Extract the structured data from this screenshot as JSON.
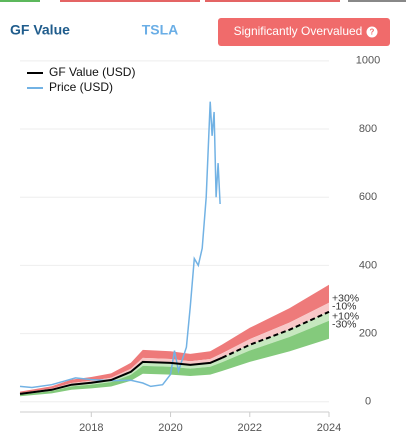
{
  "header": {
    "title": "GF Value",
    "ticker": "TSLA",
    "badge": "Significantly Overvalued",
    "badge_icon": "?"
  },
  "chart_data": {
    "type": "line",
    "xlim": [
      2016.2,
      2024
    ],
    "xticks": [
      2018,
      2020,
      2022,
      2024
    ],
    "ylim": [
      -30,
      1020
    ],
    "yticks": [
      0,
      200,
      400,
      600,
      800,
      1000
    ],
    "grid": true,
    "legend": "upper left",
    "series": [
      {
        "name": "GF Value (USD)",
        "color": "#000000",
        "x": [
          2016.2,
          2017,
          2017.5,
          2018,
          2018.5,
          2019,
          2019.3,
          2020,
          2020.5,
          2021,
          2021.3
        ],
        "values": [
          23,
          35,
          50,
          56,
          64,
          88,
          117,
          114,
          108,
          114,
          129
        ]
      },
      {
        "name": "Price (USD)",
        "color": "#72b2e4",
        "x": [
          2016.2,
          2016.5,
          2017,
          2017.3,
          2017.6,
          2018,
          2018.5,
          2019,
          2019.3,
          2019.5,
          2019.8,
          2020,
          2020.1,
          2020.2,
          2020.4,
          2020.5,
          2020.6,
          2020.7,
          2020.8,
          2020.9,
          2021,
          2021.05,
          2021.1,
          2021.15,
          2021.2,
          2021.25
        ],
        "values": [
          45,
          42,
          50,
          60,
          70,
          65,
          62,
          63,
          55,
          45,
          50,
          80,
          150,
          90,
          160,
          280,
          420,
          400,
          450,
          600,
          880,
          780,
          850,
          600,
          700,
          580
        ]
      }
    ],
    "projection": {
      "color": "#000000",
      "x": [
        2021.3,
        2022,
        2023,
        2024
      ],
      "values": [
        129,
        167,
        211,
        264
      ]
    },
    "bands": [
      {
        "value": 30,
        "label": "+30%",
        "color": "#ee7a7a"
      },
      {
        "value": 10,
        "label": "+10%",
        "color": "#f8c8c8"
      },
      {
        "value": -10,
        "label": "-10%",
        "color": "#c6e8bf"
      },
      {
        "value": -30,
        "label": "-30%",
        "color": "#84ca7c"
      }
    ]
  }
}
